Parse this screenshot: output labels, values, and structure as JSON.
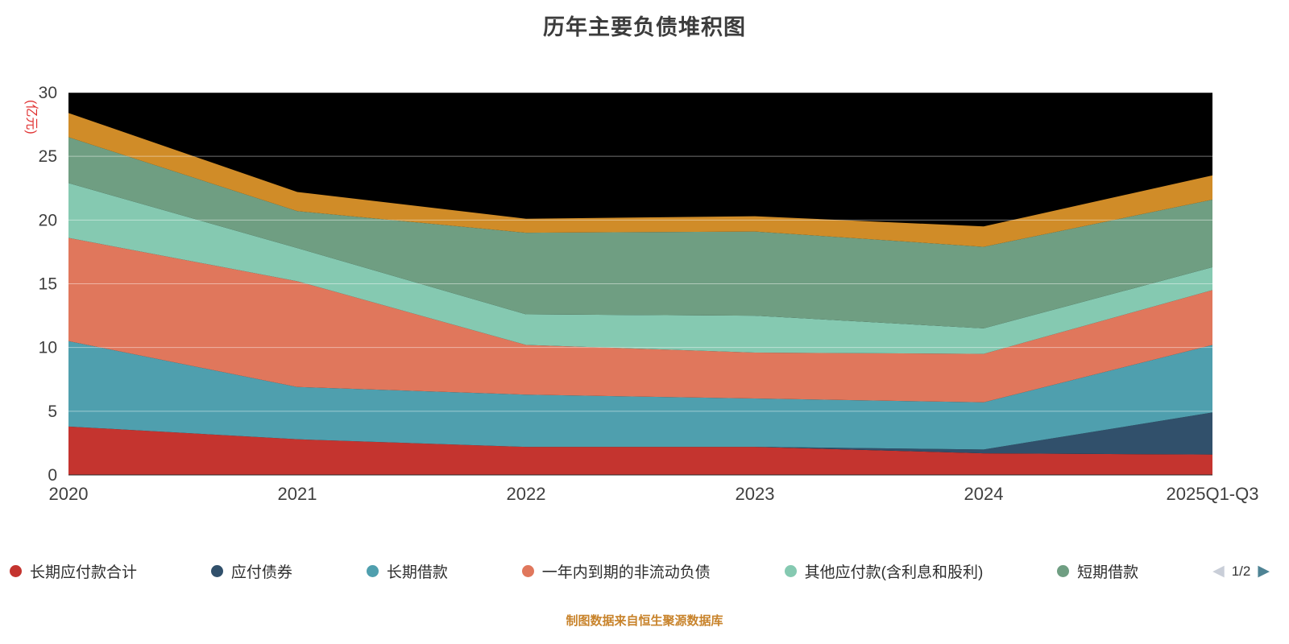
{
  "title": "历年主要负债堆积图",
  "y_axis": {
    "unit": "(亿元)",
    "unit_color": "#e03131"
  },
  "chart_data": {
    "type": "area",
    "stacked": true,
    "categories": [
      "2020",
      "2021",
      "2022",
      "2023",
      "2024",
      "2025Q1-Q3"
    ],
    "series": [
      {
        "name": "长期应付款合计",
        "color": "#c4342f",
        "values": [
          3.8,
          2.8,
          2.2,
          2.2,
          1.7,
          1.6
        ]
      },
      {
        "name": "应付债券",
        "color": "#31506b",
        "values": [
          0,
          0,
          0,
          0,
          0.3,
          3.3
        ]
      },
      {
        "name": "长期借款",
        "color": "#4f9fae",
        "values": [
          6.7,
          4.1,
          4.1,
          3.8,
          3.7,
          5.3
        ]
      },
      {
        "name": "一年内到期的非流动负债",
        "color": "#e0775c",
        "values": [
          8.1,
          8.3,
          3.9,
          3.6,
          3.8,
          4.3
        ]
      },
      {
        "name": "其他应付款(含利息和股利)",
        "color": "#85c9b1",
        "values": [
          4.3,
          2.6,
          2.4,
          2.9,
          2.0,
          1.8
        ]
      },
      {
        "name": "短期借款",
        "color": "#6f9e82",
        "values": [
          3.6,
          2.9,
          6.4,
          6.6,
          6.4,
          5.3
        ]
      },
      {
        "name": "",
        "color": "#d08c28",
        "values": [
          1.9,
          1.5,
          1.1,
          1.2,
          1.6,
          1.9
        ]
      }
    ],
    "yticks": [
      0,
      5,
      10,
      15,
      20,
      25,
      30
    ],
    "ylim": [
      0,
      30
    ],
    "title": "历年主要负债堆积图",
    "xlabel": "",
    "ylabel": "(亿元)",
    "plot_background": "#000000",
    "grid": true,
    "legend_position": "bottom"
  },
  "legend": {
    "visible_count": 6,
    "pagination": {
      "current": "1/2"
    }
  },
  "footer": {
    "text": "制图数据来自恒生聚源数据库"
  }
}
